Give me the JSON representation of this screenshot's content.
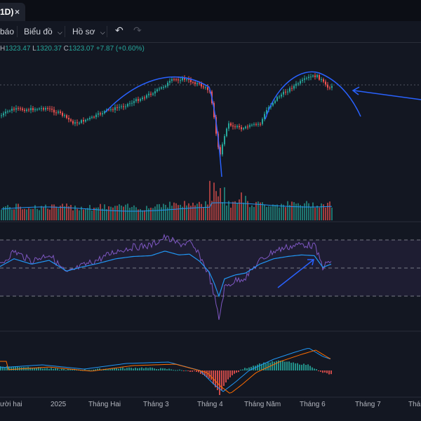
{
  "tab": {
    "title": "1D)",
    "close": "×"
  },
  "toolbar": {
    "alerts_label": "báo",
    "chart_menu_label": "Biểu đồ",
    "profile_menu_label": "Hồ sơ",
    "dropdown_glyph": "⌵",
    "undo_glyph": "↶",
    "redo_glyph": "↷"
  },
  "ohlc": {
    "h_key": "H",
    "h_value": "1323.47",
    "l_key": "L",
    "l_value": "1320.37",
    "c_key": "C",
    "c_value": "1323.07",
    "change": "+7.87 (+0.60%)"
  },
  "colors": {
    "background": "#131722",
    "up": "#26a69a",
    "down": "#ef5350",
    "annotation": "#2962ff",
    "rsi_line": "#7e57c2",
    "ma_line": "#2196f3",
    "signal_line": "#ff6d00"
  },
  "time_axis": [
    "ười hai",
    "2025",
    "Tháng Hai",
    "Tháng 3",
    "Tháng 4",
    "Tháng Năm",
    "Tháng 6",
    "Tháng 7",
    "Tháng"
  ]
}
